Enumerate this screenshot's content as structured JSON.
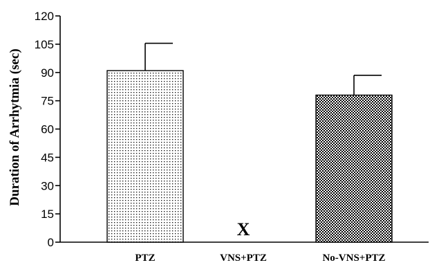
{
  "chart_data": {
    "type": "bar",
    "title": "",
    "xlabel": "",
    "ylabel": "Duration of Arrhytmia (sec)",
    "ylim": [
      0,
      120
    ],
    "yticks": [
      0,
      15,
      30,
      45,
      60,
      75,
      90,
      105,
      120
    ],
    "categories": [
      "PTZ",
      "VNS+PTZ",
      "No-VNS+PTZ"
    ],
    "values": [
      91,
      null,
      78
    ],
    "errors": [
      14.5,
      null,
      10.5
    ],
    "patterns": [
      "dotted",
      "none",
      "checkered"
    ],
    "annotations": [
      {
        "category": "VNS+PTZ",
        "text": "X"
      }
    ],
    "grid": false
  }
}
